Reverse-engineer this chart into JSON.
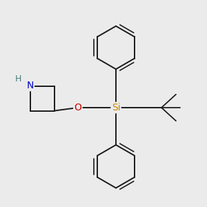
{
  "background_color": "#ebebeb",
  "atom_colors": {
    "N": "#0000cc",
    "O": "#cc0000",
    "Si": "#cc8800",
    "C": "#1a1a1a",
    "H": "#4a7a7a"
  },
  "bond_color": "#1a1a1a",
  "bond_width": 1.4,
  "figsize": [
    3.0,
    3.0
  ],
  "dpi": 100,
  "xlim": [
    -2.5,
    2.5
  ],
  "ylim": [
    -2.5,
    2.5
  ]
}
